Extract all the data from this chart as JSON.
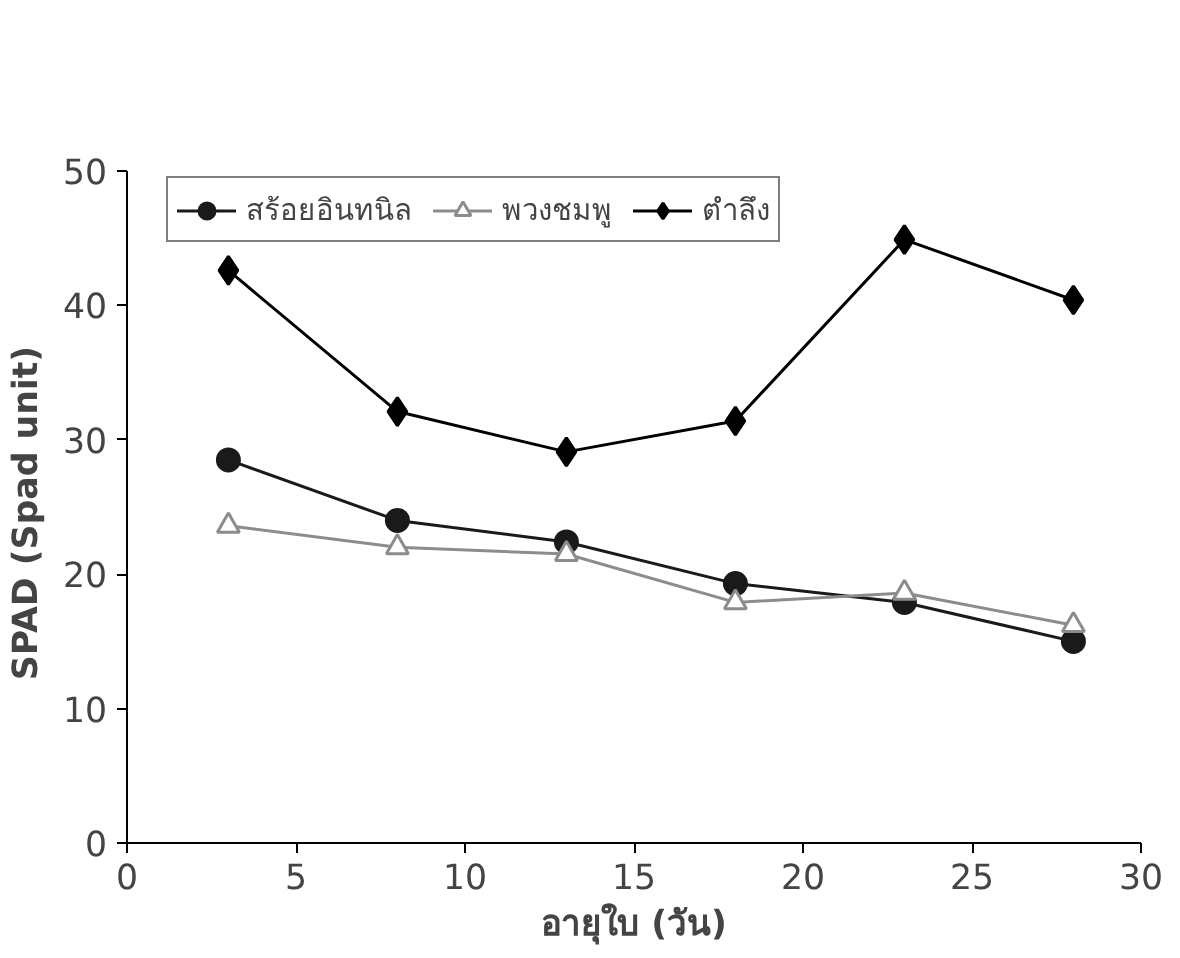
{
  "chart_data": {
    "type": "line",
    "xlabel": "อายุใบ (วัน)",
    "ylabel": "SPAD  (Spad unit)",
    "x": [
      3,
      8,
      13,
      18,
      23,
      28
    ],
    "series": [
      {
        "name": "สร้อยอินทนิล",
        "color": "#1a1a1a",
        "marker": "circle",
        "values": [
          28.5,
          24.0,
          22.4,
          19.3,
          17.9,
          15.0
        ]
      },
      {
        "name": "พวงชมพู",
        "color": "#8c8c8c",
        "marker": "triangle",
        "values": [
          23.6,
          22.0,
          21.5,
          17.9,
          18.6,
          16.2
        ]
      },
      {
        "name": "ตำลึง",
        "color": "#000000",
        "marker": "diamond",
        "values": [
          42.6,
          32.1,
          29.1,
          31.4,
          44.9,
          40.4
        ]
      }
    ],
    "xlim": [
      0,
      30
    ],
    "xticks": [
      0,
      5,
      10,
      15,
      20,
      25,
      30
    ],
    "ylim": [
      0,
      50
    ],
    "yticks": [
      0,
      10,
      20,
      30,
      40,
      50
    ],
    "grid": false,
    "legend": "top"
  }
}
